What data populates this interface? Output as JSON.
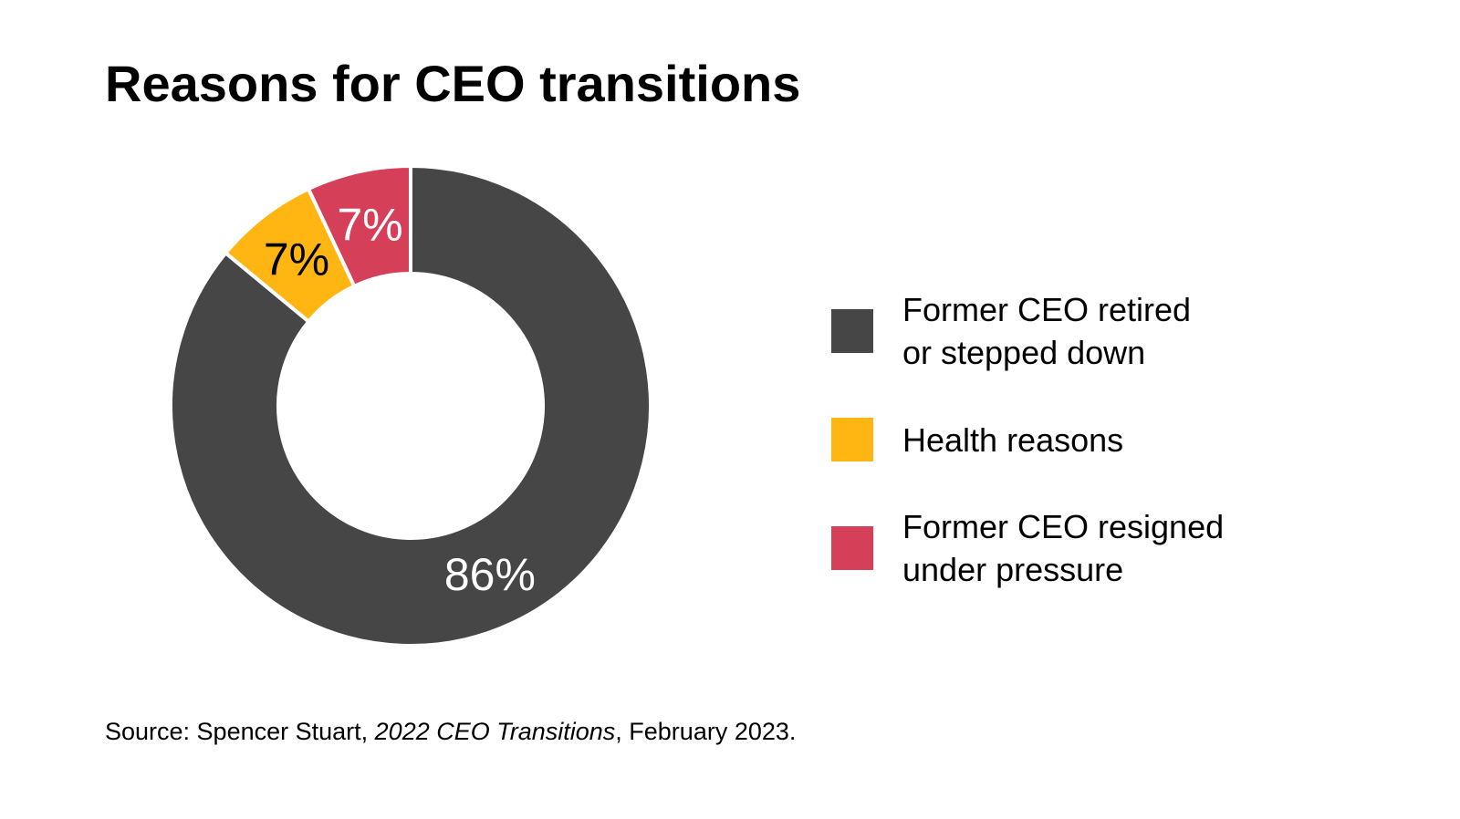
{
  "title": "Reasons for CEO transitions",
  "chart_data": {
    "type": "pie",
    "subtype": "donut",
    "title": "Reasons for CEO transitions",
    "start_angle_deg": 0,
    "direction": "clockwise",
    "inner_radius_ratio": 0.55,
    "legend_position": "right",
    "slices": [
      {
        "label": "Former CEO retired or stepped down",
        "value": 86,
        "display": "86%",
        "color": "#464646",
        "label_color": "#ffffff"
      },
      {
        "label": "Health reasons",
        "value": 7,
        "display": "7%",
        "color": "#FFB612",
        "label_color": "#000000"
      },
      {
        "label": "Former CEO resigned under pressure",
        "value": 7,
        "display": "7%",
        "color": "#D63F58",
        "label_color": "#ffffff"
      }
    ]
  },
  "legend": {
    "items": [
      {
        "label_lines": [
          "Former CEO retired",
          "or stepped down"
        ],
        "color": "#464646"
      },
      {
        "label_lines": [
          "Health reasons"
        ],
        "color": "#FFB612"
      },
      {
        "label_lines": [
          "Former CEO resigned",
          "under pressure"
        ],
        "color": "#D63F58"
      }
    ]
  },
  "source": {
    "prefix": "Source: Spencer Stuart, ",
    "italic": "2022 CEO Transitions",
    "suffix": ", February 2023."
  },
  "colors": {
    "background": "#ffffff",
    "slice_gap": "#ffffff",
    "text": "#000000"
  }
}
